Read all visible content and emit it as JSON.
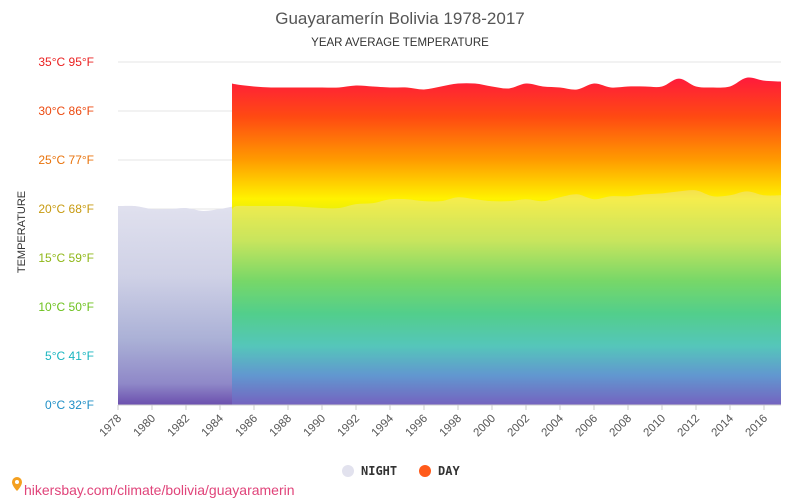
{
  "chart_data": {
    "type": "area",
    "title": "Guayaramerín Bolivia 1978-2017",
    "subtitle": "YEAR AVERAGE TEMPERATURE",
    "ylabel": "TEMPERATURE",
    "xlabel": "",
    "xlim": [
      1978,
      2017
    ],
    "ylim": [
      0,
      35
    ],
    "y_ticks": [
      {
        "value": 0,
        "label": "0°C 32°F",
        "color": "#1f8fc6"
      },
      {
        "value": 5,
        "label": "5°C 41°F",
        "color": "#19b5bf"
      },
      {
        "value": 10,
        "label": "10°C 50°F",
        "color": "#6cc11d"
      },
      {
        "value": 15,
        "label": "15°C 59°F",
        "color": "#8fb718"
      },
      {
        "value": 20,
        "label": "20°C 68°F",
        "color": "#c79a10"
      },
      {
        "value": 25,
        "label": "25°C 77°F",
        "color": "#e8730c"
      },
      {
        "value": 30,
        "label": "30°C 86°F",
        "color": "#ec4a10"
      },
      {
        "value": 35,
        "label": "35°C 95°F",
        "color": "#ea1f1f"
      }
    ],
    "x_ticks": [
      "1978",
      "1980",
      "1982",
      "1984",
      "1986",
      "1988",
      "1990",
      "1992",
      "1994",
      "1996",
      "1998",
      "2000",
      "2002",
      "2004",
      "2006",
      "2008",
      "2010",
      "2012",
      "2014",
      "2016"
    ],
    "grid": true,
    "legend_position": "bottom",
    "series": [
      {
        "name": "NIGHT",
        "color": "#e3e3f0",
        "x": [
          1978,
          1979,
          1980,
          1981,
          1982,
          1983,
          1984,
          1985,
          1986,
          1987,
          1988,
          1989,
          1990,
          1991,
          1992,
          1993,
          1994,
          1995,
          1996,
          1997,
          1998,
          1999,
          2000,
          2001,
          2002,
          2003,
          2004,
          2005,
          2006,
          2007,
          2008,
          2009,
          2010,
          2011,
          2012,
          2013,
          2014,
          2015,
          2016,
          2017
        ],
        "values": [
          20.3,
          20.3,
          20.0,
          20.0,
          20.1,
          19.8,
          20.0,
          20.3,
          20.3,
          20.3,
          20.3,
          20.2,
          20.1,
          20.1,
          20.5,
          20.6,
          21.0,
          21.0,
          20.8,
          20.8,
          21.2,
          21.0,
          20.8,
          20.8,
          21.0,
          20.8,
          21.2,
          21.5,
          21.0,
          21.3,
          21.3,
          21.5,
          21.6,
          21.8,
          21.9,
          21.3,
          21.4,
          21.8,
          21.4,
          21.4
        ]
      },
      {
        "name": "DAY",
        "color": "#ff5a1a",
        "x": [
          1984,
          1985,
          1986,
          1987,
          1988,
          1989,
          1990,
          1991,
          1992,
          1993,
          1994,
          1995,
          1996,
          1997,
          1998,
          1999,
          2000,
          2001,
          2002,
          2003,
          2004,
          2005,
          2006,
          2007,
          2008,
          2009,
          2010,
          2011,
          2012,
          2013,
          2014,
          2015,
          2016,
          2017
        ],
        "values": [
          32.8,
          32.7,
          32.5,
          32.4,
          32.4,
          32.4,
          32.4,
          32.4,
          32.6,
          32.5,
          32.4,
          32.4,
          32.2,
          32.5,
          32.8,
          32.8,
          32.5,
          32.3,
          32.8,
          32.5,
          32.4,
          32.2,
          32.8,
          32.4,
          32.5,
          32.5,
          32.5,
          33.3,
          32.5,
          32.4,
          32.5,
          33.4,
          33.1,
          33.0
        ]
      }
    ]
  },
  "footer": {
    "pin_icon": "map-pin-icon",
    "url_text": "hikersbay.com/climate/bolivia/guayaramerin"
  }
}
